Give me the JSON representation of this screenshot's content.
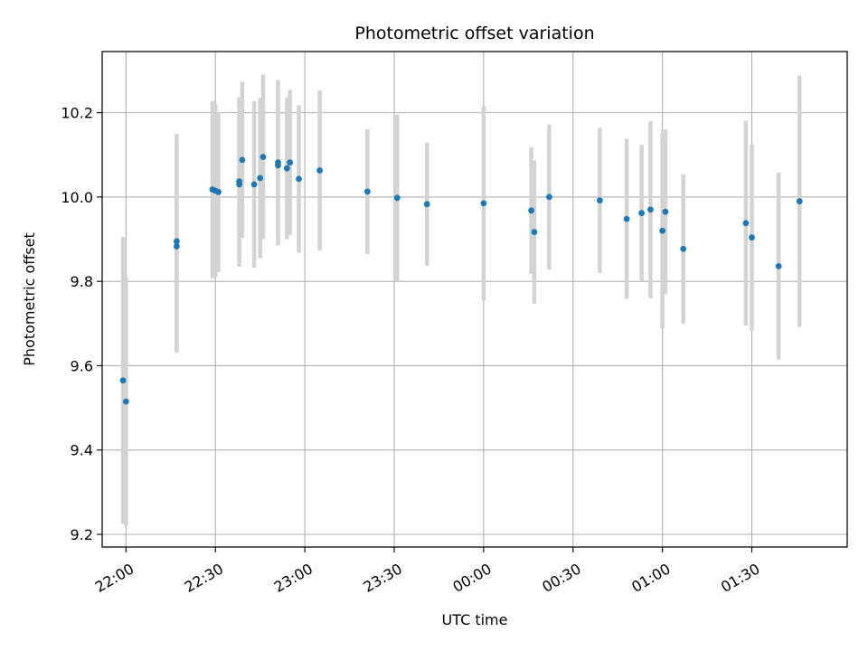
{
  "chart_data": {
    "type": "scatter",
    "title": "Photometric offset variation",
    "xlabel": "UTC time",
    "ylabel": "Photometric offset",
    "x_ticks": [
      "22:00",
      "22:30",
      "23:00",
      "23:30",
      "00:00",
      "00:30",
      "01:00",
      "01:30"
    ],
    "y_ticks": [
      "9.2",
      "9.4",
      "9.6",
      "9.8",
      "10.0",
      "10.2"
    ],
    "xlim": [
      "21:52",
      "02:02"
    ],
    "ylim": [
      9.17,
      10.345
    ],
    "grid": true,
    "colors": {
      "point": "#1f77b4",
      "errorbar": "#d3d3d3",
      "grid": "#b0b0b0"
    },
    "points": [
      {
        "x": "21:59",
        "y": 9.565,
        "err": 0.34
      },
      {
        "x": "22:00",
        "y": 9.515,
        "err": 0.295
      },
      {
        "x": "22:17",
        "y": 9.895,
        "err": 0.255
      },
      {
        "x": "22:17",
        "y": 9.883,
        "err": 0.252
      },
      {
        "x": "22:29",
        "y": 10.018,
        "err": 0.21
      },
      {
        "x": "22:30",
        "y": 10.015,
        "err": 0.205
      },
      {
        "x": "22:31",
        "y": 10.012,
        "err": 0.19
      },
      {
        "x": "22:38",
        "y": 10.037,
        "err": 0.2
      },
      {
        "x": "22:38",
        "y": 10.03,
        "err": 0.195
      },
      {
        "x": "22:39",
        "y": 10.088,
        "err": 0.185
      },
      {
        "x": "22:43",
        "y": 10.03,
        "err": 0.198
      },
      {
        "x": "22:45",
        "y": 10.045,
        "err": 0.19
      },
      {
        "x": "22:46",
        "y": 10.095,
        "err": 0.195
      },
      {
        "x": "22:51",
        "y": 10.082,
        "err": 0.196
      },
      {
        "x": "22:51",
        "y": 10.075,
        "err": 0.19
      },
      {
        "x": "22:54",
        "y": 10.068,
        "err": 0.168
      },
      {
        "x": "22:55",
        "y": 10.082,
        "err": 0.172
      },
      {
        "x": "22:58",
        "y": 10.043,
        "err": 0.175
      },
      {
        "x": "23:05",
        "y": 10.063,
        "err": 0.19
      },
      {
        "x": "23:21",
        "y": 10.013,
        "err": 0.148
      },
      {
        "x": "23:31",
        "y": 9.998,
        "err": 0.198
      },
      {
        "x": "23:41",
        "y": 9.983,
        "err": 0.146
      },
      {
        "x": "00:00",
        "y": 9.985,
        "err": 0.23
      },
      {
        "x": "00:16",
        "y": 9.968,
        "err": 0.15
      },
      {
        "x": "00:17",
        "y": 9.917,
        "err": 0.17
      },
      {
        "x": "00:22",
        "y": 10.0,
        "err": 0.172
      },
      {
        "x": "00:39",
        "y": 9.992,
        "err": 0.172
      },
      {
        "x": "00:48",
        "y": 9.948,
        "err": 0.19
      },
      {
        "x": "00:53",
        "y": 9.962,
        "err": 0.162
      },
      {
        "x": "00:56",
        "y": 9.97,
        "err": 0.21
      },
      {
        "x": "01:00",
        "y": 9.92,
        "err": 0.232
      },
      {
        "x": "01:01",
        "y": 9.965,
        "err": 0.195
      },
      {
        "x": "01:07",
        "y": 9.877,
        "err": 0.177
      },
      {
        "x": "01:28",
        "y": 9.938,
        "err": 0.243
      },
      {
        "x": "01:30",
        "y": 9.904,
        "err": 0.221
      },
      {
        "x": "01:39",
        "y": 9.836,
        "err": 0.222
      },
      {
        "x": "01:46",
        "y": 9.99,
        "err": 0.298
      }
    ]
  }
}
